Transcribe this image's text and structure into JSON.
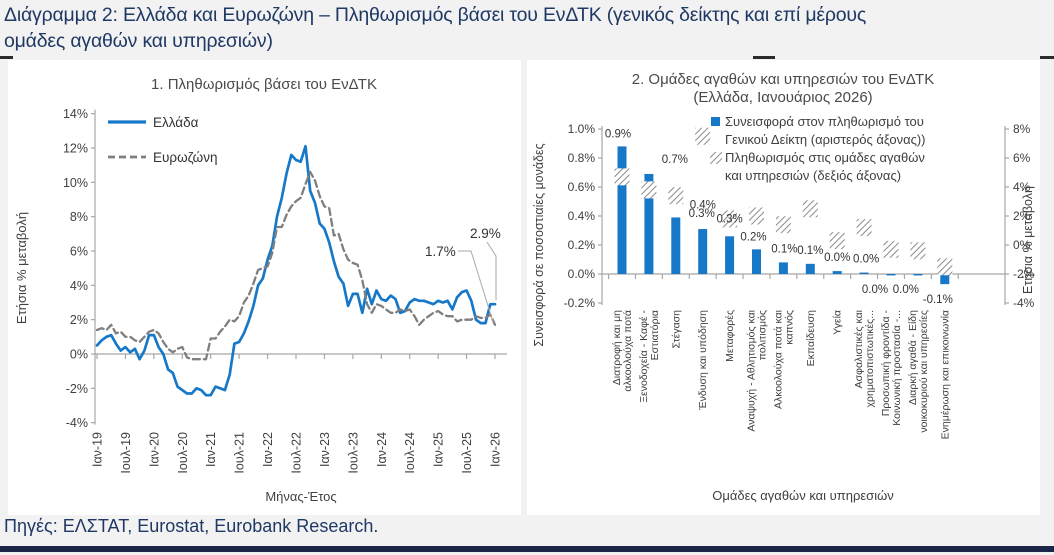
{
  "page": {
    "title_line1": "Διάγραμμα 2: Ελλάδα και Ευρωζώνη – Πληθωρισμός βάσει του ΕνΔΤΚ (γενικός δείκτης και επί μέρους",
    "title_line2": "ομάδες αγαθών και υπηρεσιών)",
    "source": "Πηγές: ΕΛΣΤΑΤ, Eurostat, Eurobank Research."
  },
  "colors": {
    "greece_blue": "#1878C8",
    "eurozone_gray": "#7F7F7F",
    "navy_text": "#1F3864",
    "axis_gray": "#A6A6A6",
    "label_gray": "#404040",
    "hatch_gray": "#8A8A8A",
    "page_bg": "#F2F2F2",
    "panel_bg": "#FFFFFF"
  },
  "chart_data": [
    {
      "type": "line",
      "title": "1. Πληθωρισμός βάσει του ΕνΔΤΚ",
      "xlabel": "Μήνας-Έτος",
      "ylabel": "Ετήσια % μεταβολή",
      "ylim": [
        -4,
        14
      ],
      "ytick_step": 2,
      "ytick_labels": [
        "14%",
        "12%",
        "10%",
        "8%",
        "6%",
        "4%",
        "2%",
        "0%",
        "-2%",
        "-4%"
      ],
      "xtick_labels": [
        "Ιαν-19",
        "Ιουλ-19",
        "Ιαν-20",
        "Ιουλ-20",
        "Ιαν-21",
        "Ιουλ-21",
        "Ιαν-22",
        "Ιουλ-22",
        "Ιαν-23",
        "Ιουλ-23",
        "Ιαν-24",
        "Ιουλ-24",
        "Ιαν-25",
        "Ιουλ-25",
        "Ιαν-26"
      ],
      "xtick_every_months": 6,
      "grid": false,
      "legend_position": "top-left",
      "series": [
        {
          "name": "Ελλάδα",
          "style": "solid",
          "color": "#1878C8",
          "values": [
            0.5,
            0.8,
            1.0,
            1.1,
            0.6,
            0.2,
            0.4,
            0.1,
            0.3,
            -0.3,
            0.2,
            1.1,
            1.1,
            0.4,
            0.0,
            -0.9,
            -1.1,
            -1.9,
            -2.1,
            -2.3,
            -2.3,
            -2.0,
            -2.1,
            -2.4,
            -2.4,
            -1.9,
            -2.0,
            -2.1,
            -1.2,
            0.6,
            0.7,
            1.2,
            1.9,
            2.8,
            4.0,
            4.4,
            5.5,
            6.3,
            8.0,
            9.1,
            10.5,
            11.6,
            11.3,
            11.2,
            12.1,
            9.5,
            8.8,
            7.6,
            7.3,
            6.5,
            5.4,
            4.5,
            4.1,
            2.8,
            3.5,
            3.5,
            2.4,
            3.8,
            2.9,
            3.7,
            3.2,
            3.1,
            3.4,
            3.2,
            2.4,
            2.5,
            3.0,
            3.2,
            3.1,
            3.1,
            3.0,
            2.9,
            3.1,
            3.0,
            3.1,
            2.6,
            3.3,
            3.6,
            3.7,
            3.1,
            2.0,
            1.8,
            1.8,
            2.9,
            2.9
          ]
        },
        {
          "name": "Ευρωζώνη",
          "style": "dashed",
          "color": "#7F7F7F",
          "values": [
            1.4,
            1.5,
            1.4,
            1.7,
            1.2,
            1.3,
            1.0,
            1.0,
            0.8,
            0.7,
            1.0,
            1.3,
            1.4,
            1.2,
            0.7,
            0.3,
            0.1,
            0.3,
            0.4,
            -0.2,
            -0.3,
            -0.3,
            -0.3,
            -0.3,
            0.9,
            0.9,
            1.3,
            1.6,
            2.0,
            1.9,
            2.2,
            3.0,
            3.4,
            4.1,
            4.9,
            5.0,
            5.1,
            5.9,
            7.4,
            7.4,
            8.1,
            8.6,
            8.9,
            9.1,
            9.9,
            10.6,
            10.1,
            9.2,
            8.6,
            8.5,
            6.9,
            7.0,
            6.1,
            5.5,
            5.3,
            5.2,
            4.3,
            2.9,
            2.4,
            2.9,
            2.8,
            2.6,
            2.4,
            2.4,
            2.6,
            2.5,
            2.6,
            2.2,
            1.7,
            2.0,
            2.2,
            2.4,
            2.5,
            2.3,
            2.2,
            2.2,
            1.9,
            2.0,
            2.0,
            2.0,
            2.2,
            2.1,
            2.1,
            2.3,
            1.7
          ]
        }
      ],
      "annotations": [
        {
          "text": "1.7%",
          "series": "Ευρωζώνη",
          "value": 1.7
        },
        {
          "text": "2.9%",
          "series": "Ελλάδα",
          "value": 2.9
        }
      ]
    },
    {
      "type": "bar",
      "title": "2. Ομάδες αγαθών και υπηρεσιών του ΕνΔΤΚ",
      "subtitle": "(Ελλάδα, Ιανουάριος 2026)",
      "xlabel": "Ομάδες αγαθών και υπηρεσιών",
      "ylabel_left": "Συνεισφορά σε ποσοστιαίες μονάδες",
      "ylabel_right": "Ετήσια % μεταβολή",
      "ylim_left": [
        -0.2,
        1.0
      ],
      "ylim_right": [
        -4,
        8
      ],
      "ytick_labels_left": [
        "1.0%",
        "0.8%",
        "0.6%",
        "0.4%",
        "0.2%",
        "0.0%",
        "-0.2%"
      ],
      "ytick_labels_right": [
        "8%",
        "6%",
        "4%",
        "2%",
        "0%",
        "-2%",
        "-4%"
      ],
      "categories": [
        "Διατροφή και μη αλκοολούχα ποτά",
        "Ξενοδοχεία - Καφέ - Εστιατόρια",
        "Στέγαση",
        "Ένδυση και υπόδηση",
        "Μεταφορές",
        "Αναψυχή - Αθλητισμός και πολιτισμός",
        "Αλκοολούχα ποτά και καπνός",
        "Εκπαίδευση",
        "Υγεία",
        "Ασφαλιστικές και χρηματοπιστωτικές...",
        "Προσωπική φροντίδα - Κοινωνική προστασία -...",
        "Διαρκή αγαθά - Είδη νοικοκυριού και υπηρεσίες",
        "Ενημέρωση και επικοινωνία"
      ],
      "category_label_lines": [
        [
          "Διατροφή και μη",
          "αλκοολούχα ποτά"
        ],
        [
          "Ξενοδοχεία - Καφέ -",
          "Εστιατόρια"
        ],
        [
          "Στέγαση"
        ],
        [
          "Ένδυση και υπόδηση"
        ],
        [
          "Μεταφορές"
        ],
        [
          "Αναψυχή - Αθλητισμός και",
          "πολιτισμός"
        ],
        [
          "Αλκοολούχα ποτά και",
          "καπνός"
        ],
        [
          "Εκπαίδευση"
        ],
        [
          "Υγεία"
        ],
        [
          "Ασφαλιστικές και",
          "χρηματοπιστωτικές..."
        ],
        [
          "Προσωπική φροντίδα -",
          "Κοινωνική προστασία -..."
        ],
        [
          "Διαρκή αγαθά - Είδη",
          "νοικοκυριού και υπηρεσίες"
        ],
        [
          "Ενημέρωση και επικοινωνία"
        ]
      ],
      "series": [
        {
          "name": "Συνεισφορά στον πληθωρισμό του Γενικού Δείκτη (αριστερός άξονας))",
          "legend_lines": [
            "Συνεισφορά στον πληθωρισμό του",
            "Γενικού Δείκτη (αριστερός άξονας))"
          ],
          "axis": "left",
          "mark": "bar",
          "color": "#1878C8",
          "values": [
            0.88,
            0.69,
            0.39,
            0.31,
            0.26,
            0.17,
            0.08,
            0.07,
            0.02,
            0.01,
            -0.01,
            -0.01,
            -0.07
          ],
          "labels": [
            "0.9%",
            "0.7%",
            "0.4%",
            "0.3%",
            "0.3%",
            "0.2%",
            "0.1%",
            "0.1%",
            "0.0%",
            "0.0%",
            "0.0%",
            "0.0%",
            "-0.1%"
          ]
        },
        {
          "name": "Πληθωρισμός στις ομάδες αγαθών και υπηρεσιών (δεξιός άξονας)",
          "legend_lines": [
            "Πληθωρισμός στις ομάδες αγαθών",
            "και υπηρεσιών (δεξιός άξονας)"
          ],
          "axis": "right",
          "mark": "hatch-square",
          "color": "#8A8A8A",
          "values": [
            4.7,
            3.8,
            3.4,
            7.5,
            1.8,
            2.0,
            1.4,
            2.5,
            0.3,
            1.2,
            -0.3,
            -0.4,
            -1.5
          ]
        }
      ]
    }
  ]
}
